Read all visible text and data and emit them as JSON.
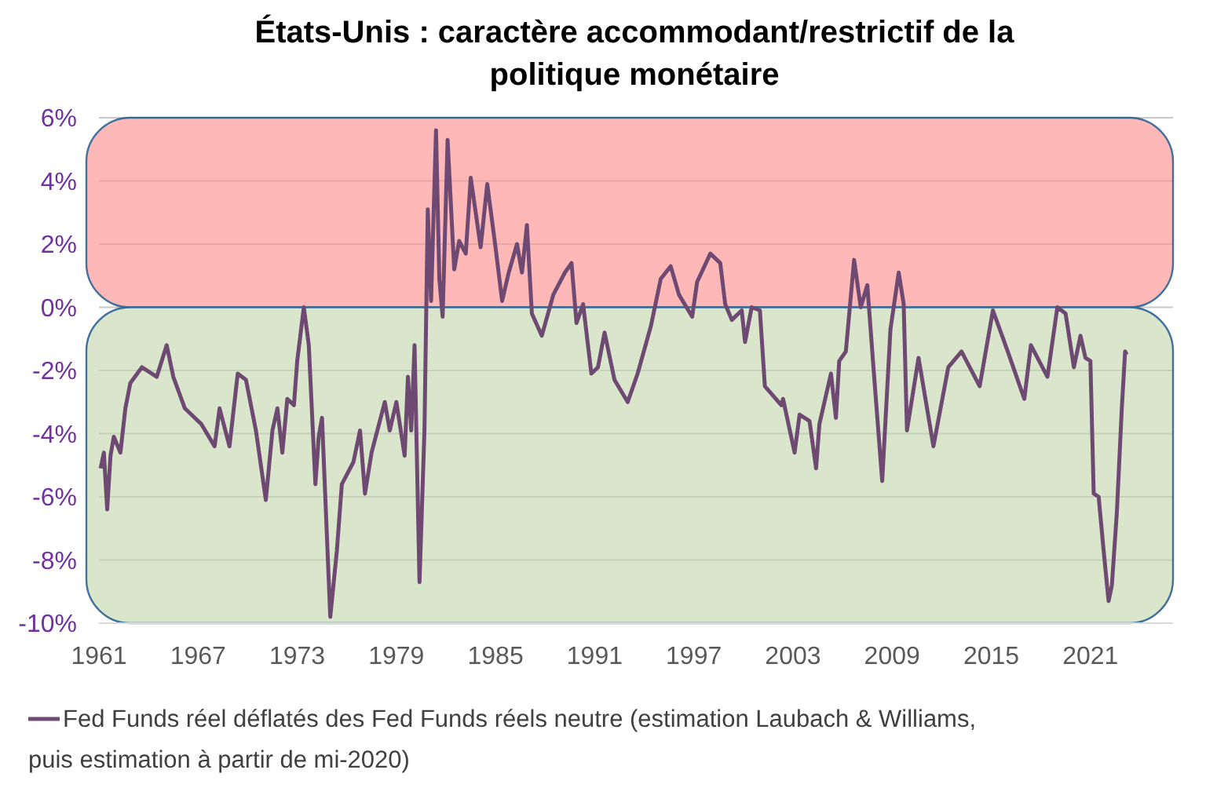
{
  "chart_data": {
    "type": "line",
    "title": "États-Unis : caractère accommodant/restrictif de la politique monétaire",
    "xlim": [
      1961,
      2026
    ],
    "xticks": [
      1961,
      1967,
      1973,
      1979,
      1985,
      1991,
      1997,
      2003,
      2009,
      2015,
      2021
    ],
    "ylim": [
      -10,
      6
    ],
    "yticks": [
      {
        "value": -10,
        "label": "-10%"
      },
      {
        "value": -8,
        "label": "-8%"
      },
      {
        "value": -6,
        "label": "-6%"
      },
      {
        "value": -4,
        "label": "-4%"
      },
      {
        "value": -2,
        "label": "-2%"
      },
      {
        "value": 0,
        "label": "0%"
      },
      {
        "value": 2,
        "label": "2%"
      },
      {
        "value": 4,
        "label": "4%"
      },
      {
        "value": 6,
        "label": "6%"
      }
    ],
    "grid": "y",
    "legend": "bottom",
    "bands": [
      {
        "axis": "y",
        "from": 0,
        "to": 6,
        "color": "#ffb0b0"
      },
      {
        "axis": "y",
        "from": -10,
        "to": 0,
        "color": "#d5e3c6"
      }
    ],
    "series": [
      {
        "name": "Fed Funds réel déflatés des Fed Funds réels neutre (estimation Laubach & Williams, puis estimation à partir de mi-2020)",
        "color": "#6e4a72",
        "x": [
          1961.1,
          1961.3,
          1961.5,
          1961.7,
          1961.9,
          1962.3,
          1962.6,
          1962.9,
          1963.6,
          1964.5,
          1965.1,
          1965.5,
          1966.2,
          1967.2,
          1968.0,
          1968.3,
          1968.9,
          1969.4,
          1969.9,
          1970.5,
          1971.1,
          1971.5,
          1971.8,
          1972.1,
          1972.4,
          1972.8,
          1973.0,
          1973.4,
          1973.7,
          1974.1,
          1974.3,
          1974.5,
          1975.0,
          1975.4,
          1975.7,
          1976.4,
          1976.8,
          1977.1,
          1977.5,
          1978.3,
          1978.6,
          1979.0,
          1979.5,
          1979.7,
          1979.9,
          1980.1,
          1980.4,
          1980.7,
          1980.9,
          1981.1,
          1981.4,
          1981.6,
          1981.8,
          1982.1,
          1982.5,
          1982.8,
          1983.2,
          1983.5,
          1984.1,
          1984.5,
          1985.0,
          1985.4,
          1985.8,
          1986.3,
          1986.6,
          1986.9,
          1987.2,
          1987.8,
          1988.5,
          1989.2,
          1989.6,
          1989.9,
          1990.3,
          1990.8,
          1991.2,
          1991.6,
          1992.2,
          1993.0,
          1993.6,
          1994.4,
          1995.0,
          1995.6,
          1996.1,
          1996.9,
          1997.2,
          1998.0,
          1998.6,
          1998.9,
          1999.3,
          1999.9,
          2000.1,
          2000.5,
          2001.0,
          2001.3,
          2002.3,
          2002.4,
          2003.1,
          2003.4,
          2004.0,
          2004.4,
          2004.6,
          2005.3,
          2005.6,
          2005.8,
          2006.2,
          2006.7,
          2007.1,
          2007.5,
          2007.9,
          2008.4,
          2008.9,
          2009.4,
          2009.7,
          2009.9,
          2010.6,
          2011.5,
          2012.4,
          2013.2,
          2014.3,
          2015.1,
          2016.0,
          2017.0,
          2017.4,
          2018.4,
          2019.0,
          2019.5,
          2020.0,
          2020.4,
          2020.7,
          2021.0,
          2021.2,
          2021.5,
          2021.8,
          2022.1,
          2022.3,
          2022.6,
          2022.9,
          2023.1,
          2023.2
        ],
        "values": [
          -5.1,
          -4.6,
          -6.4,
          -4.7,
          -4.1,
          -4.6,
          -3.2,
          -2.4,
          -1.9,
          -2.2,
          -1.2,
          -2.2,
          -3.2,
          -3.7,
          -4.4,
          -3.2,
          -4.4,
          -2.1,
          -2.3,
          -3.9,
          -6.1,
          -3.9,
          -3.2,
          -4.6,
          -2.9,
          -3.1,
          -1.7,
          0.0,
          -1.2,
          -5.6,
          -4.1,
          -3.5,
          -9.8,
          -7.7,
          -5.6,
          -4.9,
          -3.9,
          -5.9,
          -4.6,
          -3.0,
          -3.9,
          -3.0,
          -4.7,
          -2.2,
          -3.9,
          -1.2,
          -8.7,
          -3.9,
          3.1,
          0.2,
          5.6,
          0.9,
          -0.3,
          5.3,
          1.2,
          2.1,
          1.7,
          4.1,
          1.9,
          3.9,
          1.9,
          0.2,
          1.1,
          2.0,
          1.1,
          2.6,
          -0.2,
          -0.9,
          0.4,
          1.1,
          1.4,
          -0.5,
          0.1,
          -2.1,
          -1.9,
          -0.8,
          -2.3,
          -3.0,
          -2.1,
          -0.6,
          0.9,
          1.3,
          0.4,
          -0.3,
          0.8,
          1.7,
          1.4,
          0.1,
          -0.4,
          -0.1,
          -1.1,
          0.0,
          -0.1,
          -2.5,
          -3.1,
          -2.9,
          -4.6,
          -3.4,
          -3.6,
          -5.1,
          -3.7,
          -2.1,
          -3.5,
          -1.7,
          -1.4,
          1.5,
          0.0,
          0.7,
          -2.1,
          -5.5,
          -0.7,
          1.1,
          0.1,
          -3.9,
          -1.6,
          -4.4,
          -1.9,
          -1.4,
          -2.5,
          -0.1,
          -1.4,
          -2.9,
          -1.2,
          -2.2,
          0.0,
          -0.2,
          -1.9,
          -0.9,
          -1.6,
          -1.7,
          -5.9,
          -6.0,
          -7.7,
          -9.3,
          -8.8,
          -6.5,
          -3.2,
          -1.4,
          -1.5
        ]
      }
    ]
  }
}
